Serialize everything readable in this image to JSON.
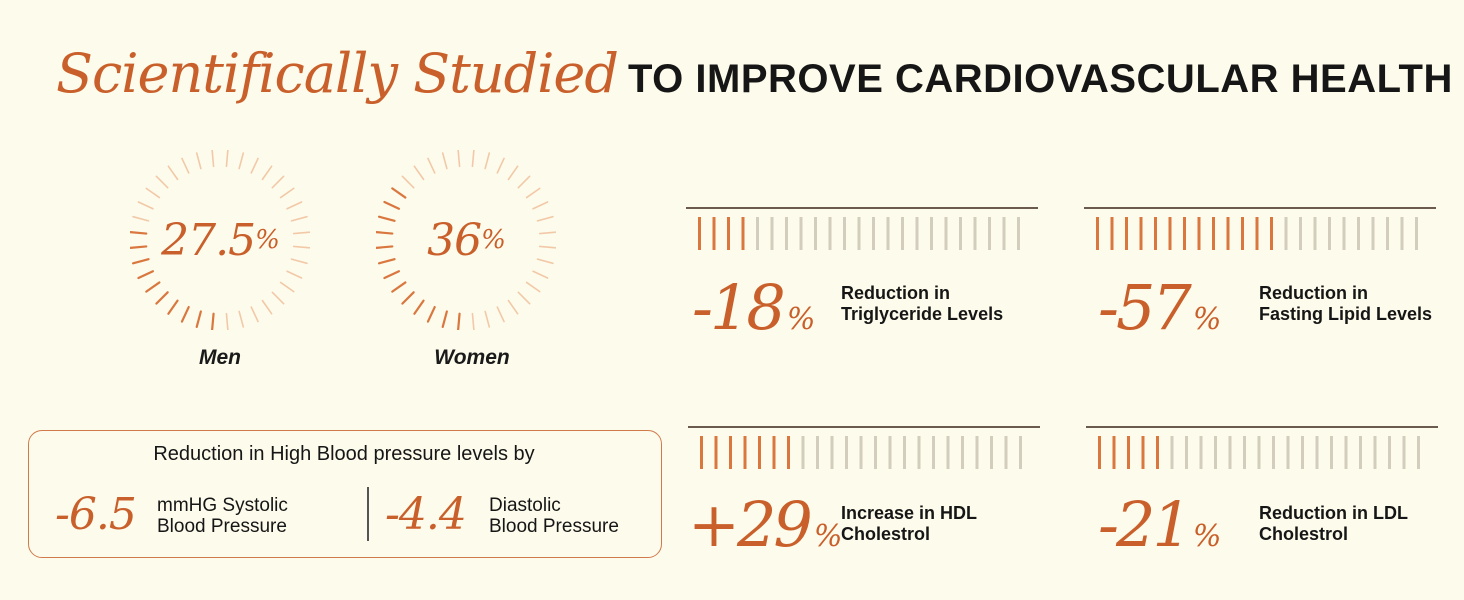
{
  "title": {
    "script": "Scientifically Studied",
    "caps": "TO IMPROVE CARDIOVASCULAR HEALTH"
  },
  "colors": {
    "accent": "#c9602b",
    "accent_light": "#f2c9a8",
    "bar_active": "#d9773f",
    "bar_inactive": "#d2cdbd",
    "text": "#161616",
    "background": "#fdfbeb"
  },
  "dials": [
    {
      "value": "27.5",
      "unit": "%",
      "label": "Men",
      "fraction": 0.275
    },
    {
      "value": "36",
      "unit": "%",
      "label": "Women",
      "fraction": 0.36
    }
  ],
  "stats": [
    {
      "value": "-18",
      "unit": "%",
      "line1": "Reduction in",
      "line2": "Triglyceride Levels",
      "active_bars": 4,
      "total_bars": 23
    },
    {
      "value": "-57",
      "unit": "%",
      "line1": "Reduction in",
      "line2": "Fasting Lipid Levels",
      "active_bars": 13,
      "total_bars": 23
    },
    {
      "value": "+29",
      "unit": "%",
      "line1": "Increase in HDL",
      "line2": "Cholestrol",
      "active_bars": 7,
      "total_bars": 23
    },
    {
      "value": "-21",
      "unit": "%",
      "line1": "Reduction in LDL",
      "line2": "Cholestrol",
      "active_bars": 5,
      "total_bars": 23
    }
  ],
  "blood_pressure": {
    "heading": "Reduction in High Blood pressure levels by",
    "systolic": {
      "value": "-6.5",
      "line1": "mmHG Systolic",
      "line2": "Blood Pressure"
    },
    "diastolic": {
      "value": "-4.4",
      "line1": "Diastolic",
      "line2": "Blood Pressure"
    }
  }
}
